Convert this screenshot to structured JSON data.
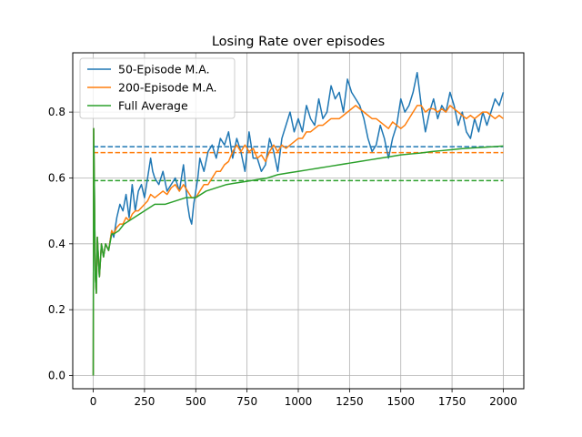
{
  "chart_data": {
    "type": "line",
    "title": "Losing Rate over episodes",
    "xlabel": "",
    "ylabel": "",
    "xlim": [
      -100,
      2100
    ],
    "ylim": [
      -0.04,
      0.98
    ],
    "xticks": [
      0,
      250,
      500,
      750,
      1000,
      1250,
      1500,
      1750,
      2000
    ],
    "yticks": [
      0.0,
      0.2,
      0.4,
      0.6,
      0.8
    ],
    "grid": true,
    "legend_position": "top-left",
    "series": [
      {
        "name": "50-Episode M.A.",
        "color": "#1f77b4",
        "x": [
          0,
          2,
          5,
          10,
          15,
          20,
          30,
          40,
          50,
          60,
          75,
          90,
          100,
          115,
          130,
          145,
          160,
          175,
          190,
          205,
          220,
          235,
          250,
          265,
          280,
          290,
          300,
          320,
          340,
          360,
          380,
          400,
          420,
          440,
          460,
          470,
          480,
          490,
          500,
          510,
          520,
          540,
          560,
          580,
          600,
          620,
          640,
          660,
          680,
          700,
          720,
          740,
          760,
          780,
          800,
          820,
          840,
          860,
          880,
          900,
          920,
          940,
          960,
          980,
          1000,
          1020,
          1040,
          1060,
          1080,
          1100,
          1120,
          1140,
          1160,
          1180,
          1200,
          1220,
          1240,
          1260,
          1280,
          1300,
          1320,
          1340,
          1360,
          1380,
          1400,
          1420,
          1440,
          1460,
          1480,
          1500,
          1520,
          1540,
          1560,
          1580,
          1600,
          1620,
          1640,
          1660,
          1680,
          1700,
          1720,
          1740,
          1760,
          1780,
          1800,
          1820,
          1840,
          1860,
          1880,
          1900,
          1920,
          1940,
          1960,
          1980,
          2000
        ],
        "y": [
          0.0,
          0.75,
          0.6,
          0.3,
          0.25,
          0.42,
          0.3,
          0.4,
          0.36,
          0.4,
          0.38,
          0.44,
          0.42,
          0.48,
          0.52,
          0.5,
          0.55,
          0.48,
          0.58,
          0.5,
          0.56,
          0.58,
          0.54,
          0.6,
          0.66,
          0.62,
          0.6,
          0.58,
          0.62,
          0.56,
          0.58,
          0.6,
          0.56,
          0.64,
          0.52,
          0.48,
          0.46,
          0.52,
          0.56,
          0.6,
          0.66,
          0.62,
          0.68,
          0.7,
          0.66,
          0.72,
          0.7,
          0.74,
          0.66,
          0.72,
          0.68,
          0.62,
          0.74,
          0.66,
          0.66,
          0.62,
          0.64,
          0.72,
          0.68,
          0.62,
          0.72,
          0.76,
          0.8,
          0.74,
          0.78,
          0.74,
          0.82,
          0.78,
          0.76,
          0.84,
          0.78,
          0.8,
          0.88,
          0.84,
          0.86,
          0.8,
          0.9,
          0.86,
          0.84,
          0.82,
          0.78,
          0.72,
          0.68,
          0.7,
          0.76,
          0.72,
          0.66,
          0.72,
          0.76,
          0.84,
          0.8,
          0.82,
          0.86,
          0.92,
          0.82,
          0.74,
          0.8,
          0.84,
          0.78,
          0.82,
          0.8,
          0.86,
          0.82,
          0.76,
          0.8,
          0.74,
          0.72,
          0.78,
          0.74,
          0.8,
          0.76,
          0.8,
          0.84,
          0.82,
          0.86
        ]
      },
      {
        "name": "200-Episode M.A.",
        "color": "#ff7f0e",
        "x": [
          0,
          2,
          5,
          10,
          15,
          20,
          30,
          40,
          50,
          60,
          75,
          90,
          100,
          115,
          130,
          145,
          160,
          175,
          190,
          205,
          220,
          235,
          250,
          265,
          280,
          300,
          320,
          340,
          360,
          380,
          400,
          420,
          440,
          460,
          480,
          500,
          520,
          540,
          560,
          580,
          600,
          620,
          640,
          660,
          680,
          700,
          720,
          740,
          760,
          780,
          800,
          820,
          840,
          860,
          880,
          900,
          920,
          940,
          960,
          980,
          1000,
          1020,
          1040,
          1060,
          1080,
          1100,
          1120,
          1140,
          1160,
          1180,
          1200,
          1220,
          1240,
          1260,
          1280,
          1300,
          1320,
          1340,
          1360,
          1380,
          1400,
          1420,
          1440,
          1460,
          1480,
          1500,
          1520,
          1540,
          1560,
          1580,
          1600,
          1620,
          1640,
          1660,
          1680,
          1700,
          1720,
          1740,
          1760,
          1780,
          1800,
          1820,
          1840,
          1860,
          1880,
          1900,
          1920,
          1940,
          1960,
          1980,
          2000
        ],
        "y": [
          0.0,
          0.75,
          0.6,
          0.3,
          0.25,
          0.42,
          0.3,
          0.4,
          0.36,
          0.4,
          0.38,
          0.44,
          0.43,
          0.45,
          0.46,
          0.46,
          0.48,
          0.47,
          0.49,
          0.5,
          0.5,
          0.51,
          0.52,
          0.53,
          0.55,
          0.54,
          0.55,
          0.56,
          0.55,
          0.57,
          0.58,
          0.56,
          0.58,
          0.56,
          0.54,
          0.54,
          0.56,
          0.58,
          0.58,
          0.6,
          0.62,
          0.62,
          0.64,
          0.65,
          0.68,
          0.7,
          0.68,
          0.7,
          0.68,
          0.69,
          0.66,
          0.67,
          0.65,
          0.68,
          0.7,
          0.68,
          0.7,
          0.69,
          0.7,
          0.71,
          0.72,
          0.72,
          0.74,
          0.74,
          0.75,
          0.76,
          0.76,
          0.77,
          0.78,
          0.78,
          0.78,
          0.79,
          0.8,
          0.81,
          0.82,
          0.81,
          0.8,
          0.79,
          0.78,
          0.78,
          0.77,
          0.76,
          0.75,
          0.77,
          0.76,
          0.75,
          0.76,
          0.78,
          0.8,
          0.82,
          0.82,
          0.8,
          0.81,
          0.81,
          0.8,
          0.81,
          0.8,
          0.82,
          0.81,
          0.8,
          0.79,
          0.78,
          0.79,
          0.78,
          0.79,
          0.8,
          0.8,
          0.79,
          0.78,
          0.79,
          0.78
        ]
      },
      {
        "name": "Full Average",
        "color": "#2ca02c",
        "x": [
          0,
          2,
          5,
          10,
          15,
          20,
          30,
          40,
          50,
          60,
          75,
          90,
          100,
          125,
          150,
          175,
          200,
          225,
          250,
          275,
          300,
          350,
          400,
          450,
          500,
          550,
          600,
          650,
          700,
          750,
          800,
          850,
          900,
          950,
          1000,
          1050,
          1100,
          1150,
          1200,
          1250,
          1300,
          1350,
          1400,
          1450,
          1500,
          1550,
          1600,
          1650,
          1700,
          1750,
          1800,
          1850,
          1900,
          1950,
          2000
        ],
        "y": [
          0.0,
          0.75,
          0.6,
          0.3,
          0.25,
          0.42,
          0.3,
          0.4,
          0.36,
          0.4,
          0.38,
          0.43,
          0.43,
          0.44,
          0.46,
          0.47,
          0.48,
          0.49,
          0.5,
          0.51,
          0.52,
          0.52,
          0.53,
          0.54,
          0.54,
          0.56,
          0.57,
          0.58,
          0.585,
          0.59,
          0.595,
          0.6,
          0.61,
          0.615,
          0.62,
          0.625,
          0.63,
          0.635,
          0.64,
          0.645,
          0.65,
          0.655,
          0.66,
          0.665,
          0.67,
          0.673,
          0.676,
          0.68,
          0.683,
          0.686,
          0.689,
          0.691,
          0.693,
          0.695,
          0.697
        ]
      }
    ],
    "reference_lines": [
      {
        "y": 0.695,
        "color": "#1f77b4",
        "style": "dashed",
        "x_range": [
          0,
          2000
        ]
      },
      {
        "y": 0.677,
        "color": "#ff7f0e",
        "style": "dashed",
        "x_range": [
          0,
          2000
        ]
      },
      {
        "y": 0.592,
        "color": "#2ca02c",
        "style": "dashed",
        "x_range": [
          0,
          2000
        ]
      }
    ]
  }
}
